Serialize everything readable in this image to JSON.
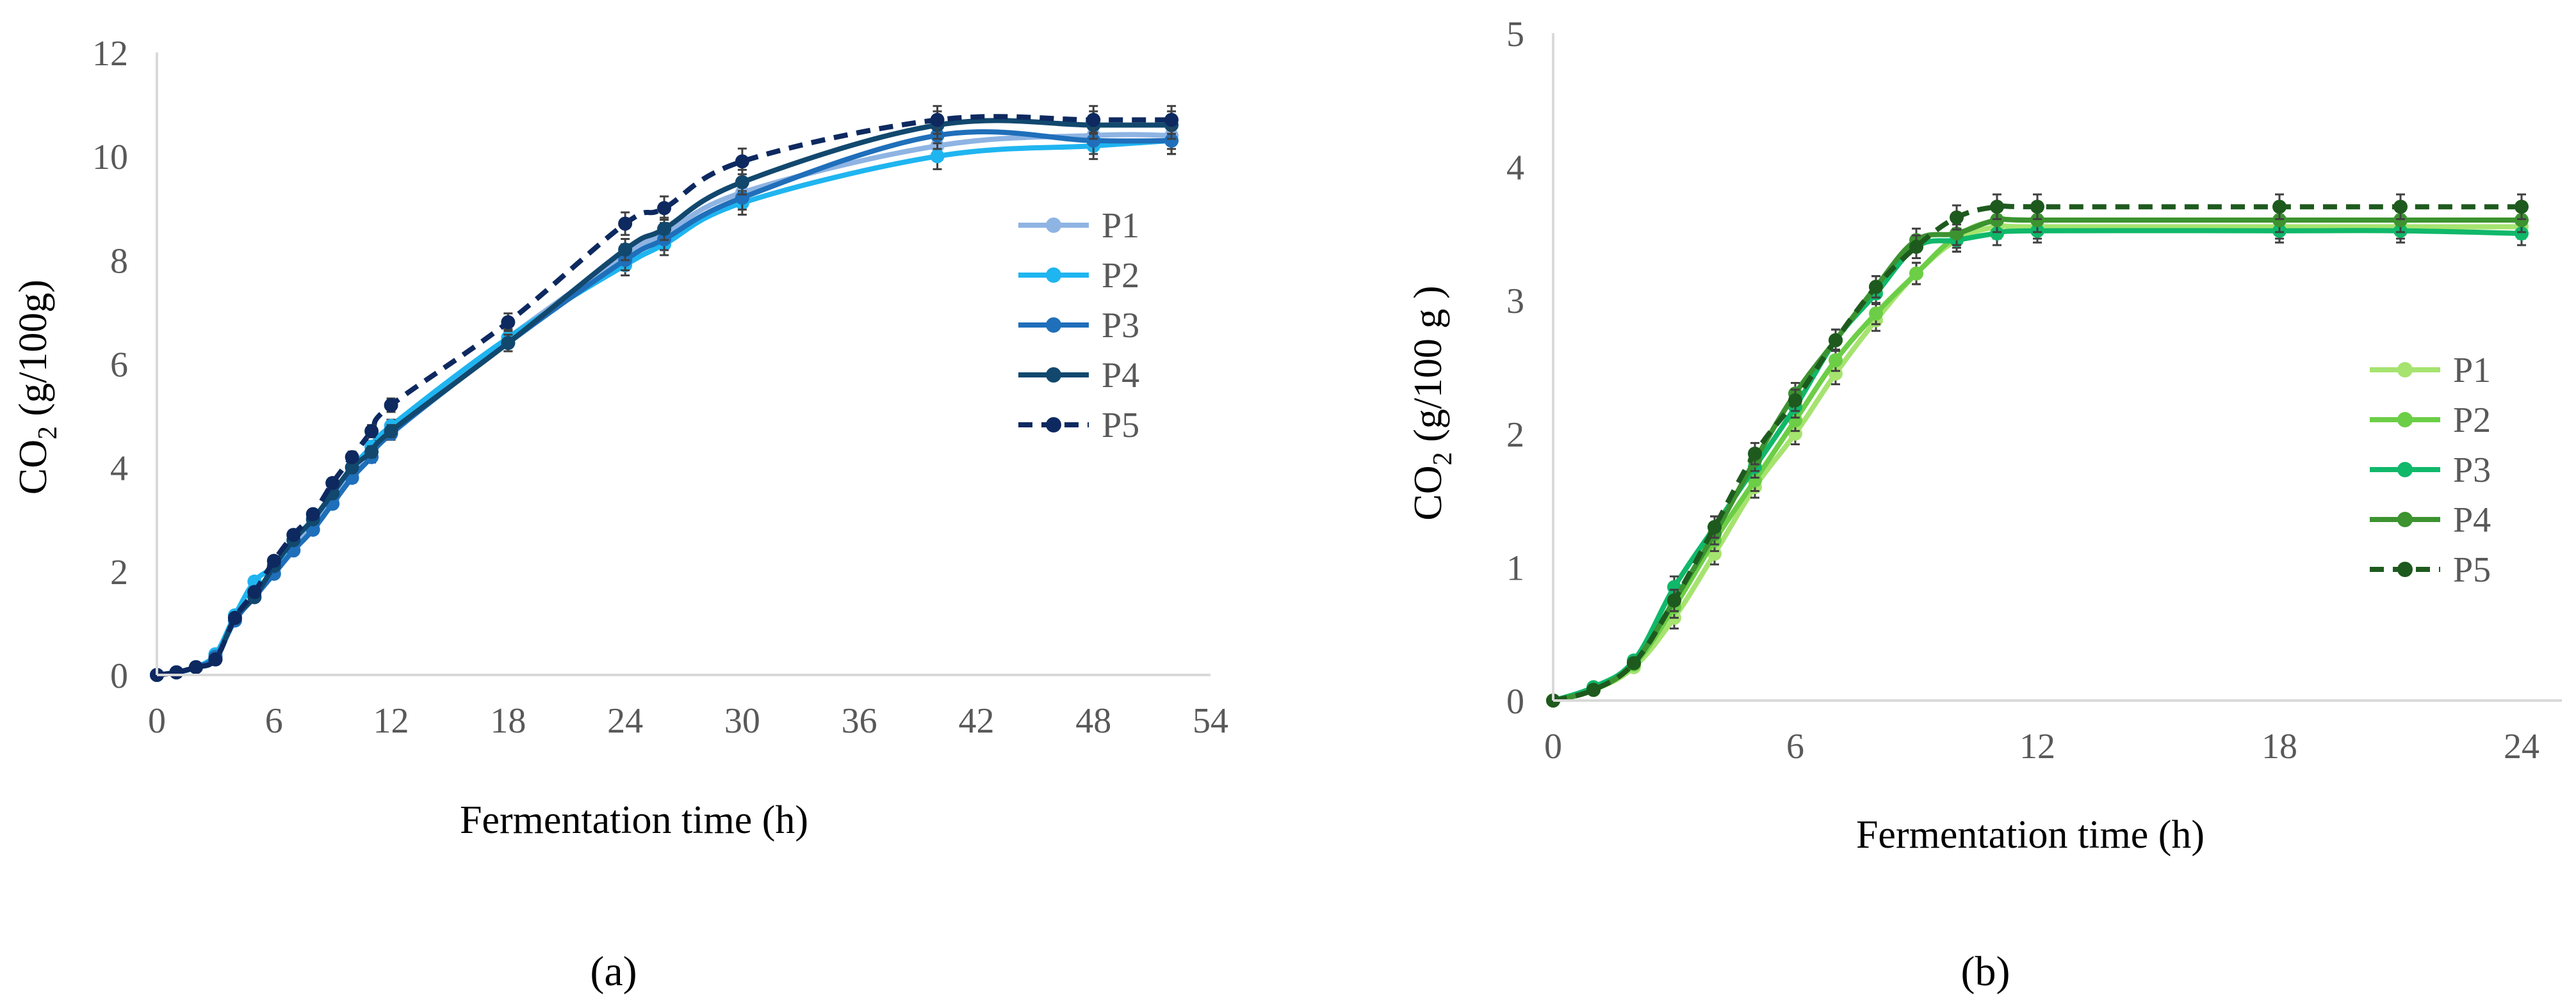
{
  "chart_data": [
    {
      "type": "line",
      "panel": "a",
      "panel_label": "(a)",
      "title": "",
      "xlabel": "Fermentation time (h)",
      "ylabel_main": "CO",
      "ylabel_sub": "2",
      "ylabel_tail": " (g/100g)",
      "xlim": [
        0,
        54
      ],
      "ylim": [
        0,
        12
      ],
      "xticks": [
        0,
        6,
        12,
        18,
        24,
        30,
        36,
        42,
        48,
        54
      ],
      "yticks": [
        0,
        2,
        4,
        6,
        8,
        10,
        12
      ],
      "grid": false,
      "legend_position": "right",
      "x": [
        0,
        1,
        2,
        3,
        4,
        5,
        6,
        7,
        8,
        9,
        10,
        11,
        12,
        18,
        24,
        26,
        30,
        40,
        48,
        52
      ],
      "series": [
        {
          "name": "P1",
          "color": "#8eb4e3",
          "dashed": false,
          "values": [
            0,
            0.05,
            0.15,
            0.35,
            1.05,
            1.55,
            2.05,
            2.5,
            2.9,
            3.4,
            3.9,
            4.4,
            4.8,
            6.5,
            8.1,
            8.5,
            9.3,
            10.2,
            10.4,
            10.4
          ]
        },
        {
          "name": "P2",
          "color": "#1fb5f0",
          "dashed": false,
          "values": [
            0,
            0.05,
            0.15,
            0.4,
            1.15,
            1.8,
            2.1,
            2.6,
            3.0,
            3.5,
            4.0,
            4.4,
            4.8,
            6.5,
            7.9,
            8.3,
            9.1,
            10.0,
            10.2,
            10.3
          ]
        },
        {
          "name": "P3",
          "color": "#1f6fba",
          "dashed": false,
          "values": [
            0,
            0.05,
            0.15,
            0.35,
            1.05,
            1.5,
            1.95,
            2.4,
            2.8,
            3.3,
            3.8,
            4.2,
            4.65,
            6.4,
            8.0,
            8.4,
            9.2,
            10.4,
            10.3,
            10.3
          ]
        },
        {
          "name": "P4",
          "color": "#12486e",
          "dashed": false,
          "values": [
            0,
            0.05,
            0.15,
            0.3,
            1.1,
            1.5,
            2.1,
            2.6,
            3.0,
            3.5,
            4.0,
            4.3,
            4.7,
            6.4,
            8.2,
            8.6,
            9.5,
            10.6,
            10.6,
            10.6
          ]
        },
        {
          "name": "P5",
          "color": "#0d2960",
          "dashed": true,
          "values": [
            0,
            0.05,
            0.15,
            0.3,
            1.1,
            1.6,
            2.2,
            2.7,
            3.1,
            3.7,
            4.2,
            4.7,
            5.2,
            6.8,
            8.7,
            9.0,
            9.9,
            10.7,
            10.7,
            10.7
          ]
        }
      ]
    },
    {
      "type": "line",
      "panel": "b",
      "panel_label": "(b)",
      "title": "",
      "xlabel": "Fermentation time (h)",
      "ylabel_main": "CO",
      "ylabel_sub": "2",
      "ylabel_tail": " (g/100 g )",
      "xlim": [
        0,
        25
      ],
      "ylim": [
        0,
        5
      ],
      "xticks": [
        0,
        6,
        12,
        18,
        24
      ],
      "yticks": [
        0,
        1,
        2,
        3,
        4,
        5
      ],
      "grid": false,
      "legend_position": "right",
      "x": [
        0,
        1,
        2,
        3,
        4,
        5,
        6,
        7,
        8,
        9,
        10,
        11,
        12,
        18,
        21,
        24
      ],
      "series": [
        {
          "name": "P1",
          "color": "#a6e36f",
          "dashed": false,
          "values": [
            0,
            0.08,
            0.25,
            0.62,
            1.1,
            1.6,
            2.0,
            2.45,
            2.85,
            3.2,
            3.45,
            3.55,
            3.55,
            3.55,
            3.55,
            3.55
          ]
        },
        {
          "name": "P2",
          "color": "#6cce46",
          "dashed": false,
          "values": [
            0,
            0.08,
            0.27,
            0.7,
            1.2,
            1.65,
            2.1,
            2.55,
            2.9,
            3.2,
            3.48,
            3.6,
            3.6,
            3.6,
            3.6,
            3.6
          ]
        },
        {
          "name": "P3",
          "color": "#10b86a",
          "dashed": false,
          "values": [
            0,
            0.1,
            0.3,
            0.85,
            1.3,
            1.75,
            2.2,
            2.7,
            3.05,
            3.4,
            3.45,
            3.5,
            3.52,
            3.52,
            3.52,
            3.5
          ]
        },
        {
          "name": "P4",
          "color": "#3c9330",
          "dashed": false,
          "values": [
            0,
            0.08,
            0.28,
            0.75,
            1.25,
            1.8,
            2.3,
            2.7,
            3.1,
            3.45,
            3.5,
            3.6,
            3.6,
            3.6,
            3.6,
            3.6
          ]
        },
        {
          "name": "P5",
          "color": "#1e5a1e",
          "dashed": true,
          "values": [
            0,
            0.08,
            0.28,
            0.75,
            1.3,
            1.85,
            2.25,
            2.7,
            3.1,
            3.4,
            3.62,
            3.7,
            3.7,
            3.7,
            3.7,
            3.7
          ]
        }
      ]
    }
  ]
}
